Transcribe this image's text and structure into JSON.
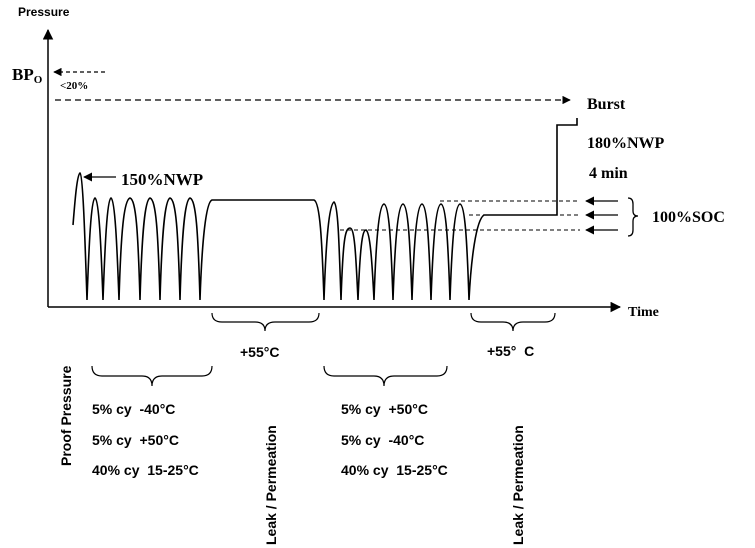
{
  "axes": {
    "y_label": "Pressure",
    "x_label": "Time"
  },
  "labels": {
    "bp_main": "BP",
    "bp_sub": "O",
    "bp_pct": "<20%",
    "burst": "Burst",
    "nwp150": "150%NWP",
    "nwp180": "180%NWP",
    "hold": "4 min",
    "soc": "100%SOC",
    "proof": "Proof Pressure",
    "temp1": "+55°C",
    "temp2": "+55°  C",
    "leak1": "Leak / Permeation",
    "leak2": "Leak / Permeation"
  },
  "phase1_conditions": [
    "5% cy  -40°C",
    "5% cy  +50°C",
    "40% cy  15-25°C"
  ],
  "phase2_conditions": [
    "5% cy  +50°C",
    "5% cy  -40°C",
    "40% cy  15-25°C"
  ],
  "colors": {
    "ink": "#000000",
    "background": "#ffffff"
  }
}
